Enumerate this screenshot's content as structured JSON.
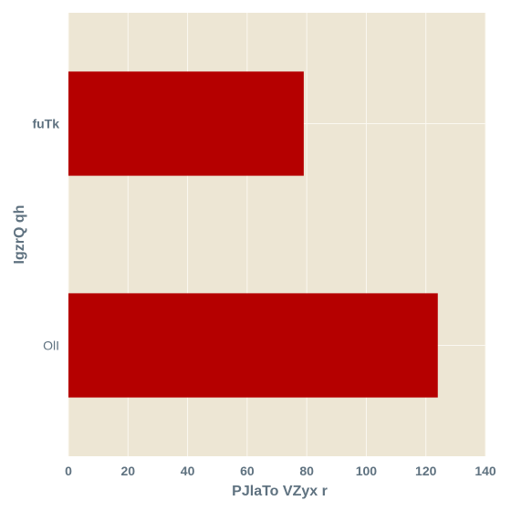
{
  "chart_data": {
    "type": "bar",
    "orientation": "horizontal",
    "categories": [
      "fuTk",
      "OlI"
    ],
    "values": [
      79,
      124
    ],
    "title": "",
    "xlabel": "PJlaTo VZyx r",
    "ylabel": "IgzrQ qh",
    "xlim": [
      0,
      140
    ],
    "xticks": [
      0,
      20,
      40,
      60,
      80,
      100,
      120,
      140
    ],
    "grid": true,
    "legend": "none"
  },
  "colors": {
    "bar": "#b50000",
    "plot_background": "#ede6d4",
    "grid": "#fbf8f1",
    "text": "#5f7280"
  }
}
